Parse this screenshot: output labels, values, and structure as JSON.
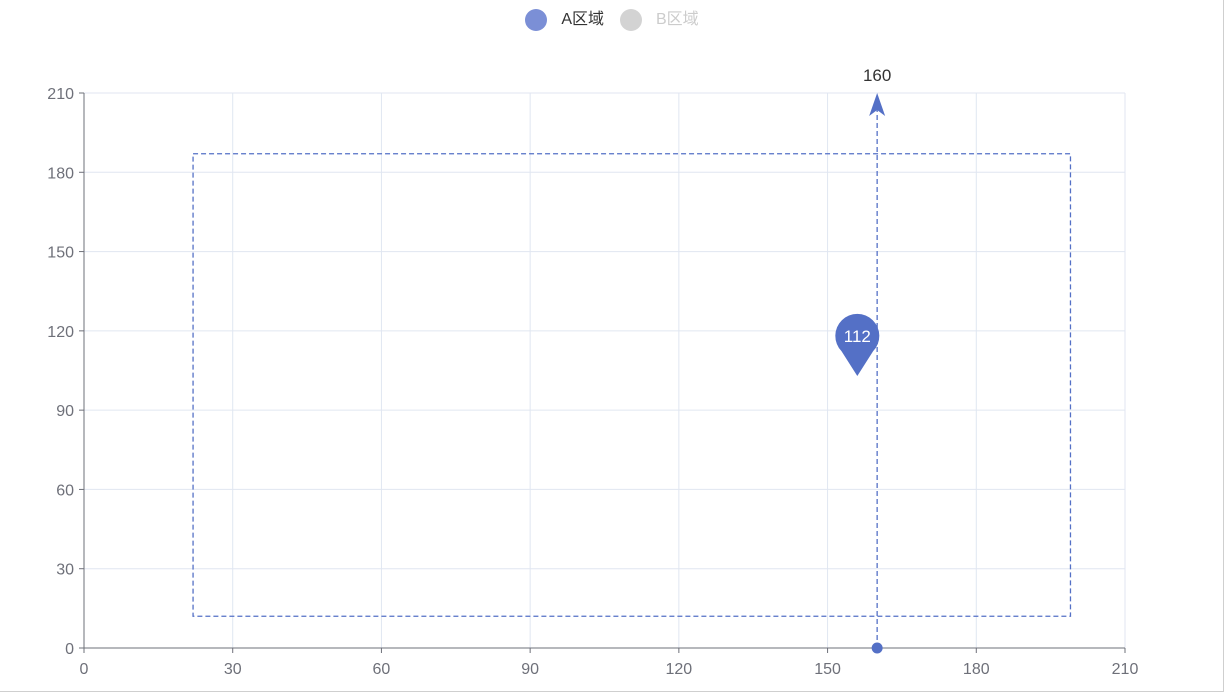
{
  "legend": {
    "items": [
      {
        "label": "A区域",
        "color": "#7b8fd6",
        "active": true
      },
      {
        "label": "B区域",
        "color": "#d3d3d3",
        "active": false
      }
    ]
  },
  "chart_data": {
    "type": "scatter",
    "xlim": [
      0,
      210
    ],
    "ylim": [
      0,
      210
    ],
    "x_ticks": [
      0,
      30,
      60,
      90,
      120,
      150,
      180,
      210
    ],
    "y_ticks": [
      0,
      30,
      60,
      90,
      120,
      150,
      180,
      210
    ],
    "grid": true,
    "legend_position": "top-center",
    "series": [
      {
        "name": "A区域",
        "color": "#5470c6",
        "points": [
          [
            160,
            0
          ]
        ],
        "mark_area": {
          "x_from": 22,
          "x_to": 199,
          "y_from": 12,
          "y_to": 187,
          "style": "dashed"
        },
        "mark_line": {
          "x": 160,
          "label": "160",
          "style": "dashed",
          "arrow": "up"
        },
        "mark_point": {
          "x": 156,
          "y": 112,
          "label": "112",
          "shape": "pin"
        }
      },
      {
        "name": "B区域",
        "color": "#d3d3d3",
        "points": []
      }
    ]
  }
}
